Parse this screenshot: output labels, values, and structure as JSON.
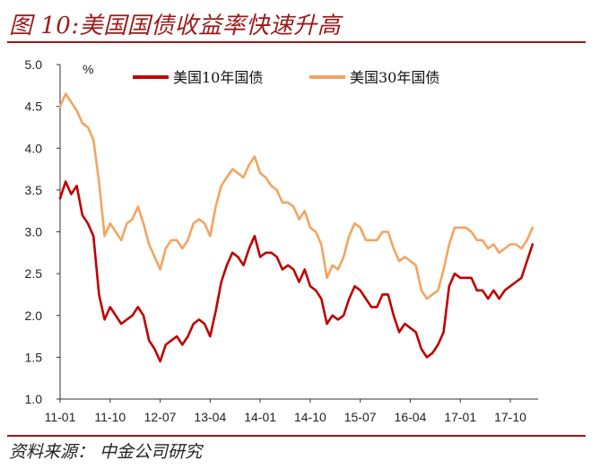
{
  "header": {
    "title": "图 10:美国国债收益率快速升高"
  },
  "footer": {
    "source": "资料来源： 中金公司研究"
  },
  "colors": {
    "accent": "#9b1a1a",
    "series_10y": "#c00000",
    "series_30y": "#f4a460"
  },
  "chart_data": {
    "type": "line",
    "title": "",
    "xlabel": "",
    "ylabel": "",
    "yunit": "%",
    "ylim": [
      1.0,
      5.0
    ],
    "yticks": [
      1.0,
      1.5,
      2.0,
      2.5,
      3.0,
      3.5,
      4.0,
      4.5,
      5.0
    ],
    "ytick_labels": [
      "1.0",
      "1.5",
      "2.0",
      "2.5",
      "3.0",
      "3.5",
      "4.0",
      "4.5",
      "5.0"
    ],
    "xlim": [
      "2011-01",
      "2018-03"
    ],
    "xticks": [
      "11-01",
      "11-10",
      "12-07",
      "13-04",
      "14-01",
      "14-10",
      "15-07",
      "16-04",
      "17-01",
      "17-10"
    ],
    "grid": false,
    "legend": "top-center",
    "x": [
      "2011-01",
      "2011-02",
      "2011-03",
      "2011-04",
      "2011-05",
      "2011-06",
      "2011-07",
      "2011-08",
      "2011-09",
      "2011-10",
      "2011-11",
      "2011-12",
      "2012-01",
      "2012-02",
      "2012-03",
      "2012-04",
      "2012-05",
      "2012-06",
      "2012-07",
      "2012-08",
      "2012-09",
      "2012-10",
      "2012-11",
      "2012-12",
      "2013-01",
      "2013-02",
      "2013-03",
      "2013-04",
      "2013-05",
      "2013-06",
      "2013-07",
      "2013-08",
      "2013-09",
      "2013-10",
      "2013-11",
      "2013-12",
      "2014-01",
      "2014-02",
      "2014-03",
      "2014-04",
      "2014-05",
      "2014-06",
      "2014-07",
      "2014-08",
      "2014-09",
      "2014-10",
      "2014-11",
      "2014-12",
      "2015-01",
      "2015-02",
      "2015-03",
      "2015-04",
      "2015-05",
      "2015-06",
      "2015-07",
      "2015-08",
      "2015-09",
      "2015-10",
      "2015-11",
      "2015-12",
      "2016-01",
      "2016-02",
      "2016-03",
      "2016-04",
      "2016-05",
      "2016-06",
      "2016-07",
      "2016-08",
      "2016-09",
      "2016-10",
      "2016-11",
      "2016-12",
      "2017-01",
      "2017-02",
      "2017-03",
      "2017-04",
      "2017-05",
      "2017-06",
      "2017-07",
      "2017-08",
      "2017-09",
      "2017-10",
      "2017-11",
      "2017-12",
      "2018-01",
      "2018-02"
    ],
    "series": [
      {
        "name": "美国10年国债",
        "values": [
          3.4,
          3.6,
          3.45,
          3.55,
          3.2,
          3.1,
          2.95,
          2.25,
          1.95,
          2.1,
          2.0,
          1.9,
          1.95,
          2.0,
          2.1,
          2.0,
          1.7,
          1.6,
          1.45,
          1.65,
          1.7,
          1.75,
          1.65,
          1.75,
          1.9,
          1.95,
          1.9,
          1.75,
          2.05,
          2.4,
          2.6,
          2.75,
          2.7,
          2.6,
          2.8,
          2.95,
          2.7,
          2.75,
          2.75,
          2.7,
          2.55,
          2.6,
          2.55,
          2.4,
          2.55,
          2.35,
          2.3,
          2.2,
          1.9,
          2.0,
          1.95,
          2.0,
          2.2,
          2.35,
          2.3,
          2.2,
          2.1,
          2.1,
          2.25,
          2.25,
          2.0,
          1.8,
          1.9,
          1.85,
          1.8,
          1.6,
          1.5,
          1.55,
          1.65,
          1.8,
          2.35,
          2.5,
          2.45,
          2.45,
          2.45,
          2.3,
          2.3,
          2.2,
          2.3,
          2.2,
          2.3,
          2.35,
          2.4,
          2.45,
          2.65,
          2.85
        ]
      },
      {
        "name": "美国30年国债",
        "values": [
          4.5,
          4.65,
          4.55,
          4.45,
          4.3,
          4.25,
          4.1,
          3.6,
          2.95,
          3.1,
          3.0,
          2.9,
          3.1,
          3.15,
          3.3,
          3.1,
          2.85,
          2.7,
          2.55,
          2.8,
          2.9,
          2.9,
          2.8,
          2.9,
          3.1,
          3.15,
          3.1,
          2.95,
          3.3,
          3.55,
          3.65,
          3.75,
          3.7,
          3.65,
          3.8,
          3.9,
          3.7,
          3.65,
          3.55,
          3.5,
          3.35,
          3.35,
          3.3,
          3.15,
          3.25,
          3.05,
          3.0,
          2.85,
          2.45,
          2.6,
          2.55,
          2.7,
          2.95,
          3.1,
          3.05,
          2.9,
          2.9,
          2.9,
          3.0,
          3.0,
          2.8,
          2.65,
          2.7,
          2.65,
          2.6,
          2.3,
          2.2,
          2.25,
          2.3,
          2.55,
          2.85,
          3.05,
          3.05,
          3.05,
          3.0,
          2.9,
          2.9,
          2.8,
          2.85,
          2.75,
          2.8,
          2.85,
          2.85,
          2.8,
          2.9,
          3.05
        ]
      }
    ]
  }
}
